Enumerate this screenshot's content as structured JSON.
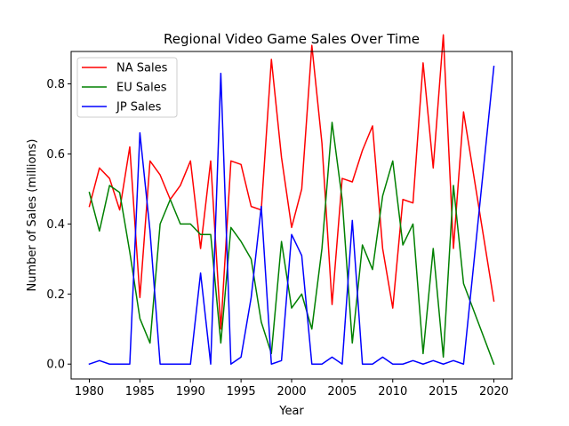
{
  "chart_data": {
    "type": "line",
    "title": "Regional Video Game Sales Over Time",
    "xlabel": "Year",
    "ylabel": "Number of Sales (millions)",
    "xlim": [
      1978.2,
      2021.8
    ],
    "ylim": [
      -0.0425,
      0.8925
    ],
    "xticks": [
      1980,
      1985,
      1990,
      1995,
      2000,
      2005,
      2010,
      2015,
      2020
    ],
    "yticks": [
      0.0,
      0.2,
      0.4,
      0.6,
      0.8
    ],
    "ytick_labels": [
      "0.0",
      "0.2",
      "0.4",
      "0.6",
      "0.8"
    ],
    "legend_position": "top-left",
    "grid": false,
    "x": [
      1980,
      1981,
      1982,
      1983,
      1984,
      1985,
      1986,
      1987,
      1988,
      1989,
      1990,
      1991,
      1992,
      1993,
      1994,
      1995,
      1996,
      1997,
      1998,
      1999,
      2000,
      2001,
      2002,
      2003,
      2004,
      2005,
      2006,
      2007,
      2008,
      2009,
      2010,
      2011,
      2012,
      2013,
      2014,
      2015,
      2016,
      2017,
      2020
    ],
    "series": [
      {
        "name": "NA Sales",
        "color": "#ff0000",
        "values": [
          0.45,
          0.56,
          0.53,
          0.44,
          0.62,
          0.19,
          0.58,
          0.54,
          0.47,
          0.51,
          0.58,
          0.33,
          0.58,
          0.1,
          0.58,
          0.57,
          0.45,
          0.44,
          0.87,
          0.59,
          0.39,
          0.5,
          0.91,
          0.63,
          0.17,
          0.53,
          0.52,
          0.61,
          0.68,
          0.33,
          0.16,
          0.47,
          0.46,
          0.86,
          0.56,
          0.94,
          0.33,
          0.72,
          0.18
        ]
      },
      {
        "name": "EU Sales",
        "color": "#008000",
        "values": [
          0.49,
          0.38,
          0.51,
          0.49,
          0.32,
          0.13,
          0.06,
          0.4,
          0.47,
          0.4,
          0.4,
          0.37,
          0.37,
          0.06,
          0.39,
          0.35,
          0.3,
          0.12,
          0.03,
          0.35,
          0.16,
          0.2,
          0.1,
          0.33,
          0.69,
          0.47,
          0.06,
          0.34,
          0.27,
          0.48,
          0.58,
          0.34,
          0.4,
          0.03,
          0.33,
          0.02,
          0.51,
          0.23,
          0.0
        ]
      },
      {
        "name": "JP Sales",
        "color": "#0000ff",
        "values": [
          0.0,
          0.01,
          0.0,
          0.0,
          0.0,
          0.66,
          0.38,
          0.0,
          0.0,
          0.0,
          0.0,
          0.26,
          0.0,
          0.83,
          0.0,
          0.02,
          0.19,
          0.45,
          0.0,
          0.01,
          0.37,
          0.31,
          0.0,
          0.0,
          0.02,
          0.0,
          0.41,
          0.0,
          0.0,
          0.02,
          0.0,
          0.0,
          0.01,
          0.0,
          0.01,
          0.0,
          0.01,
          0.0,
          0.85
        ]
      }
    ]
  }
}
